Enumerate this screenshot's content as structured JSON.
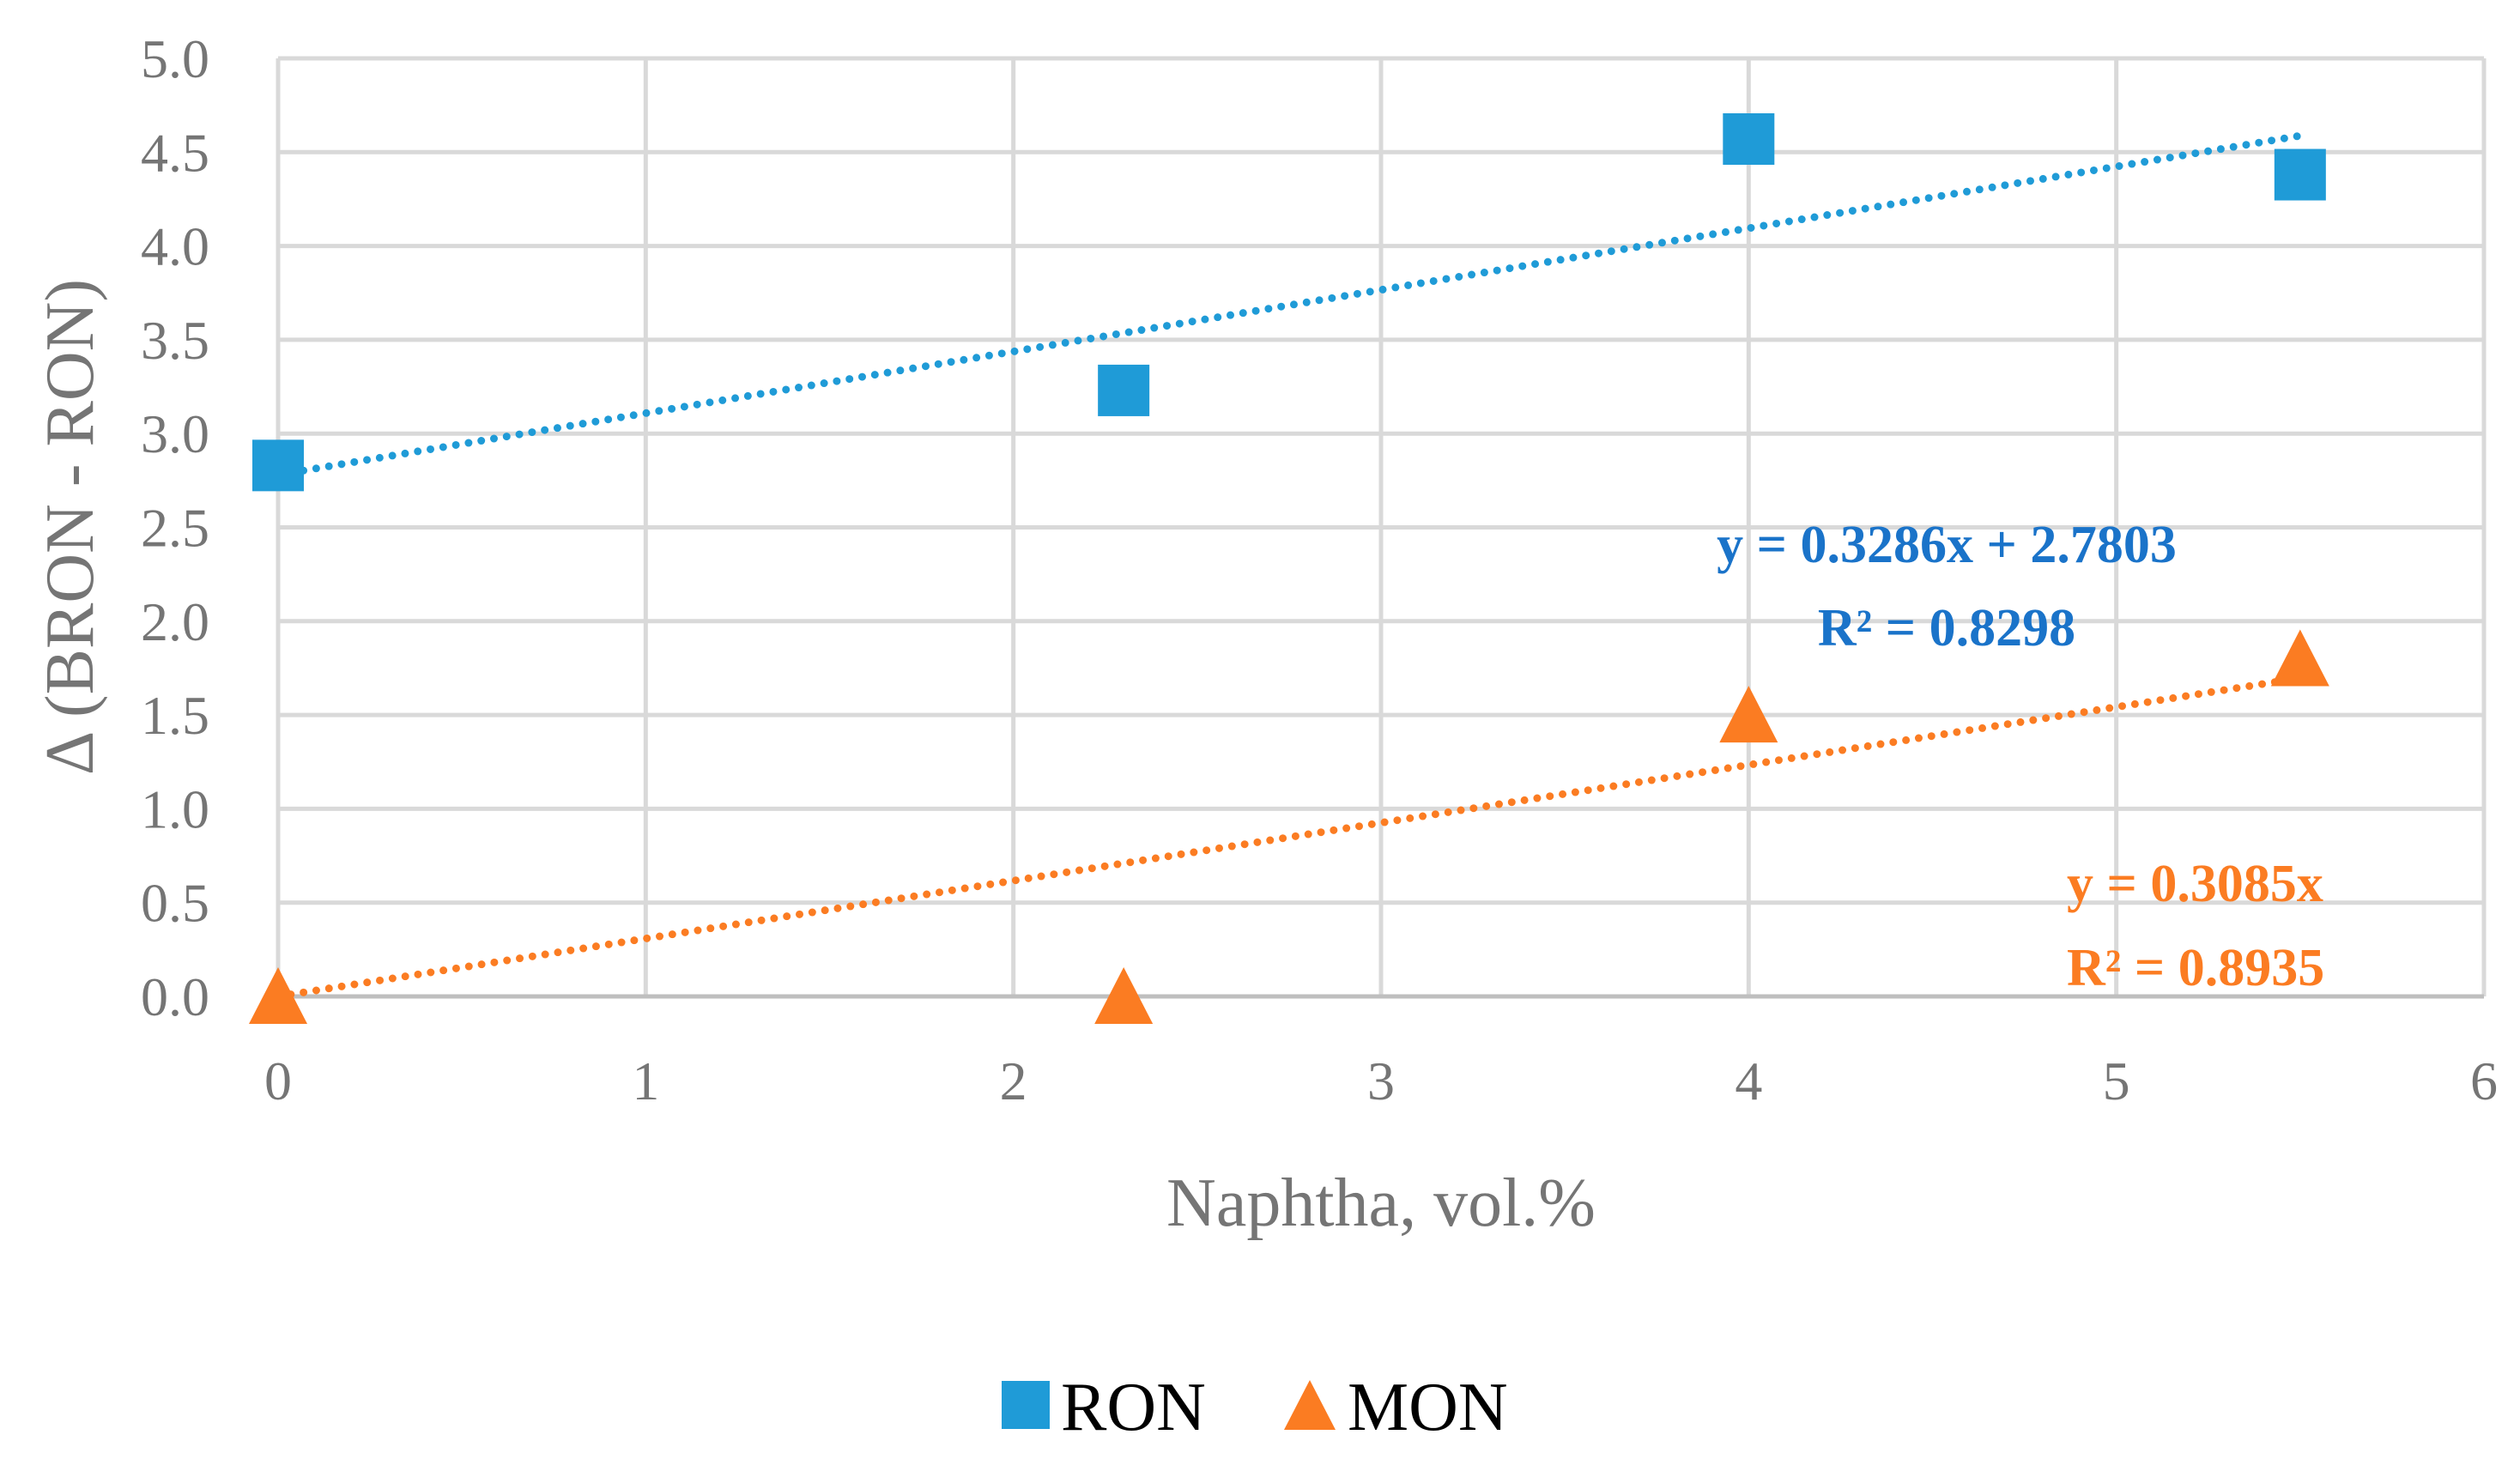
{
  "chart_data": {
    "type": "scatter",
    "title": "",
    "xlabel": "Naphtha, vol.%",
    "ylabel": "Δ (BRON - RON)",
    "xlim": [
      0,
      6
    ],
    "ylim": [
      0,
      5
    ],
    "xticks": [
      "0",
      "1",
      "2",
      "3",
      "4",
      "5",
      "6"
    ],
    "yticks": [
      "0.0",
      "0.5",
      "1.0",
      "1.5",
      "2.0",
      "2.5",
      "3.0",
      "3.5",
      "4.0",
      "4.5",
      "5.0"
    ],
    "grid": true,
    "legend_position": "bottom",
    "series": [
      {
        "name": "RON",
        "marker": "square",
        "color": "#1f9bd7",
        "x": [
          0,
          2.3,
          4,
          5.5
        ],
        "y": [
          2.83,
          3.23,
          4.57,
          4.38
        ],
        "trendline": {
          "slope": 0.3286,
          "intercept": 2.7803,
          "equation": "y = 0.3286x + 2.7803",
          "r2": "R² = 0.8298",
          "label_color": "#1a73c9"
        }
      },
      {
        "name": "MON",
        "marker": "triangle",
        "color": "#fb7c22",
        "x": [
          0,
          2.3,
          4,
          5.5
        ],
        "y": [
          0,
          0,
          1.5,
          1.8
        ],
        "trendline": {
          "slope": 0.3085,
          "intercept": 0,
          "equation": "y = 0.3085x",
          "r2": "R² = 0.8935",
          "label_color": "#fb7c22"
        }
      }
    ]
  }
}
